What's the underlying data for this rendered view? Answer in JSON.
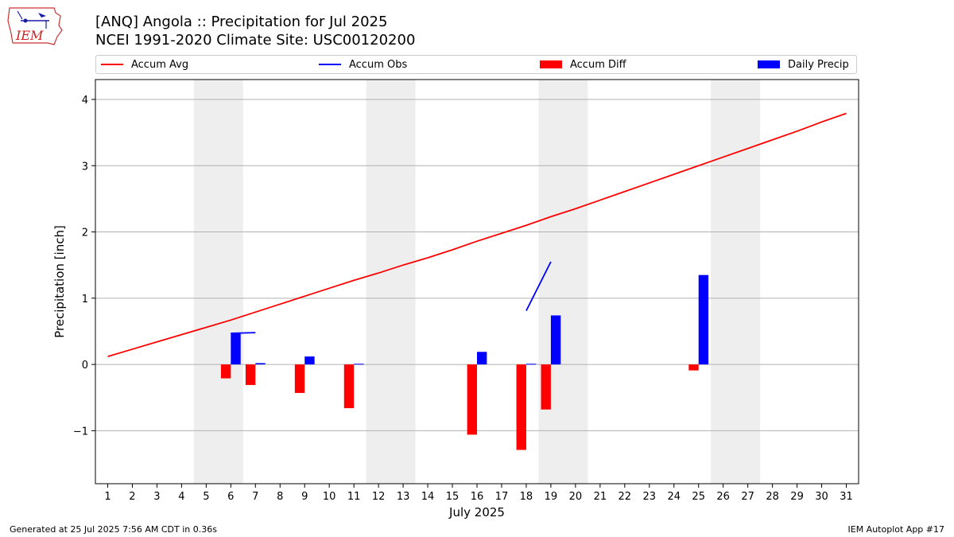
{
  "header": {
    "title_line1": "[ANQ] Angola :: Precipitation for Jul 2025",
    "title_line2": "NCEI 1991-2020 Climate Site: USC00120200",
    "logo_text": "IEM"
  },
  "footer": {
    "left": "Generated at 25 Jul 2025 7:56 AM CDT in 0.36s",
    "right": "IEM Autoplot App #17"
  },
  "colors": {
    "accum_avg": "#ff0000",
    "accum_obs": "#0000ff",
    "accum_diff": "#ff0000",
    "daily_precip": "#0000ff",
    "weekend_shade": "#eeeeee",
    "grid": "#b0b0b0"
  },
  "chart_data": {
    "type": "bar",
    "xlabel": "July 2025",
    "ylabel": "Precipitation [inch]",
    "x": [
      1,
      2,
      3,
      4,
      5,
      6,
      7,
      8,
      9,
      10,
      11,
      12,
      13,
      14,
      15,
      16,
      17,
      18,
      19,
      20,
      21,
      22,
      23,
      24,
      25,
      26,
      27,
      28,
      29,
      30,
      31
    ],
    "xlim": [
      0.5,
      31.5
    ],
    "ylim": [
      -1.8,
      4.3
    ],
    "yticks": [
      -1,
      0,
      1,
      2,
      3,
      4
    ],
    "ytick_labels": [
      "−1",
      "0",
      "1",
      "2",
      "3",
      "4"
    ],
    "grid": true,
    "legend_position": "top",
    "shaded_days": [
      [
        5,
        6
      ],
      [
        12,
        13
      ],
      [
        19,
        20
      ],
      [
        26,
        27
      ]
    ],
    "series": [
      {
        "name": "Accum Avg",
        "kind": "line",
        "x": [
          1,
          2,
          3,
          4,
          5,
          6,
          7,
          8,
          9,
          10,
          11,
          12,
          13,
          14,
          15,
          16,
          17,
          18,
          19,
          20,
          21,
          22,
          23,
          24,
          25,
          26,
          27,
          28,
          29,
          30,
          31
        ],
        "values": [
          0.12,
          0.23,
          0.34,
          0.45,
          0.56,
          0.67,
          0.79,
          0.91,
          1.03,
          1.15,
          1.27,
          1.38,
          1.5,
          1.61,
          1.73,
          1.86,
          1.98,
          2.1,
          2.23,
          2.35,
          2.48,
          2.61,
          2.74,
          2.87,
          3.0,
          3.13,
          3.26,
          3.39,
          3.52,
          3.66,
          3.79
        ]
      },
      {
        "name": "Accum Obs",
        "kind": "line",
        "segments": [
          {
            "x": [
              6,
              7
            ],
            "values": [
              0.47,
              0.48
            ]
          },
          {
            "x": [
              18,
              19
            ],
            "values": [
              0.81,
              1.55
            ]
          }
        ]
      },
      {
        "name": "Accum Diff",
        "kind": "bar",
        "x": [
          6,
          7,
          9,
          11,
          16,
          18,
          19,
          25
        ],
        "values": [
          -0.21,
          -0.31,
          -0.43,
          -0.66,
          -1.06,
          -1.29,
          -0.68,
          -0.09
        ]
      },
      {
        "name": "Daily Precip",
        "kind": "bar",
        "x": [
          6,
          7,
          9,
          11,
          16,
          18,
          19,
          25
        ],
        "values": [
          0.47,
          0.02,
          0.12,
          0.01,
          0.19,
          0.01,
          0.74,
          1.35
        ]
      }
    ]
  }
}
